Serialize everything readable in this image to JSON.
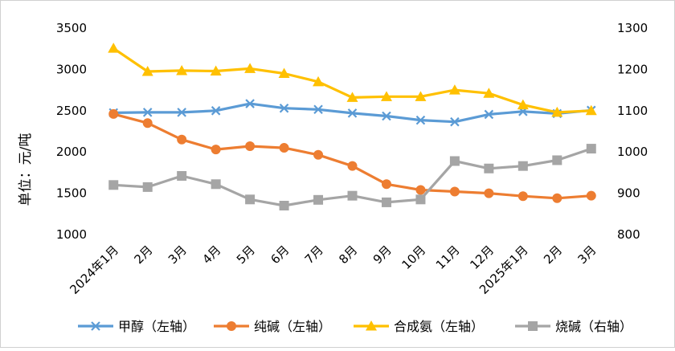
{
  "chart_data": {
    "type": "line",
    "title": "",
    "ylabel": "单位：元/吨",
    "ylabel_right": "",
    "categories": [
      "2024年1月",
      "2月",
      "3月",
      "4月",
      "5月",
      "6月",
      "7月",
      "8月",
      "9月",
      "10月",
      "11月",
      "12月",
      "2025年1月",
      "2月",
      "3月"
    ],
    "y_left": {
      "min": 1000,
      "max": 3500,
      "ticks": [
        "1000",
        "1500",
        "2000",
        "2500",
        "3000",
        "3500"
      ]
    },
    "y_right": {
      "min": 800,
      "max": 1300,
      "ticks": [
        "800",
        "900",
        "1000",
        "1100",
        "1200",
        "1300"
      ]
    },
    "grid": false,
    "legend_position": "bottom",
    "series": [
      {
        "name": "甲醇（左轴）",
        "axis": "left",
        "color": "#5B9BD5",
        "marker": "x",
        "values": [
          2475,
          2480,
          2480,
          2500,
          2585,
          2530,
          2515,
          2470,
          2435,
          2385,
          2365,
          2455,
          2490,
          2465,
          2505
        ]
      },
      {
        "name": "纯碱（左轴）",
        "axis": "left",
        "color": "#ED7D31",
        "marker": "circle",
        "values": [
          2460,
          2350,
          2150,
          2030,
          2070,
          2050,
          1965,
          1830,
          1610,
          1540,
          1520,
          1500,
          1465,
          1440,
          1470
        ]
      },
      {
        "name": "合成氨（左轴）",
        "axis": "left",
        "color": "#FFC000",
        "marker": "triangle",
        "values": [
          3255,
          2975,
          2985,
          2980,
          3010,
          2950,
          2850,
          2660,
          2670,
          2670,
          2750,
          2710,
          2570,
          2480,
          2500
        ]
      },
      {
        "name": "烧碱（右轴）",
        "axis": "right",
        "color": "#A5A5A5",
        "marker": "square",
        "values": [
          920,
          915,
          942,
          922,
          885,
          870,
          884,
          894,
          878,
          885,
          978,
          960,
          966,
          980,
          1008
        ]
      }
    ]
  }
}
